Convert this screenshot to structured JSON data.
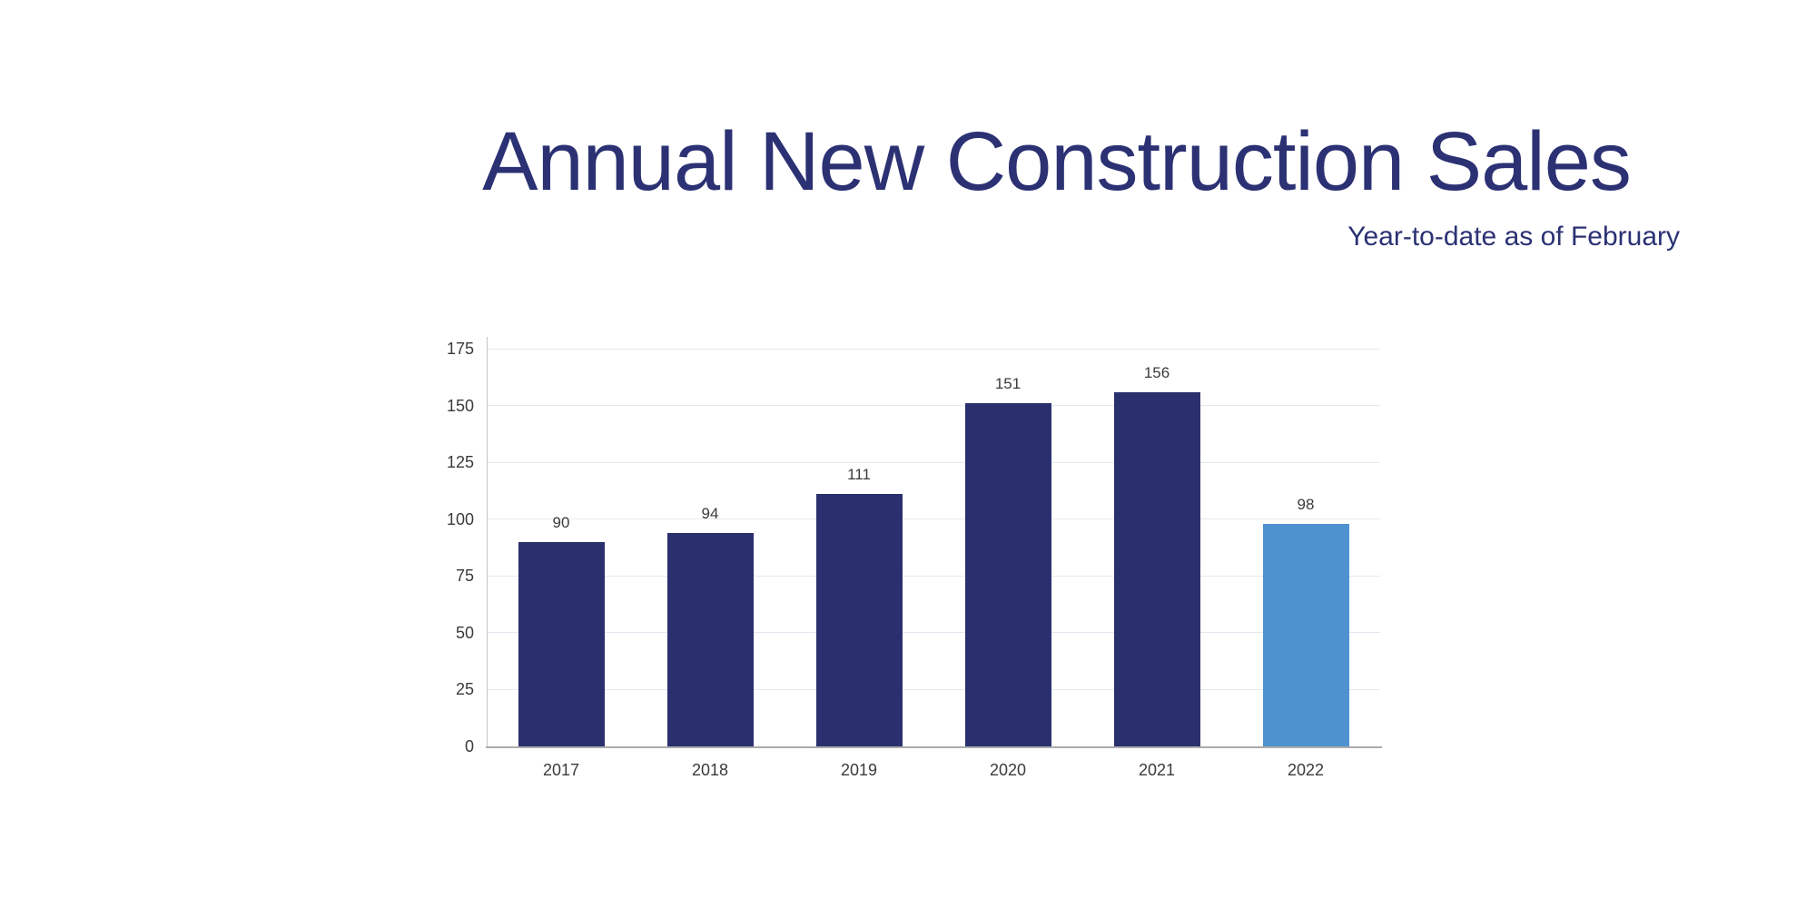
{
  "header": {
    "title": "Annual New Construction Sales",
    "subtitle": "Year-to-date as of February"
  },
  "colors": {
    "title_navy": "#2B3173",
    "bar_navy": "#2A306E",
    "bar_highlight_blue": "#4E92D0",
    "gridline": "#E4E9F1",
    "axis_line": "#ABABAB",
    "label_gray": "#3B3B3B"
  },
  "chart_data": {
    "type": "bar",
    "title": "Annual New Construction Sales",
    "subtitle": "Year-to-date as of February",
    "categories": [
      "2017",
      "2018",
      "2019",
      "2020",
      "2021",
      "2022"
    ],
    "values": [
      90,
      94,
      111,
      151,
      156,
      98
    ],
    "data_labels": [
      "90",
      "94",
      "111",
      "151",
      "156",
      "98"
    ],
    "highlighted_category": "2022",
    "y_ticks": [
      0,
      25,
      50,
      75,
      100,
      125,
      150,
      175
    ],
    "ylim": [
      0,
      175
    ],
    "xlabel": "",
    "ylabel": "",
    "grid": true,
    "legend_position": "none"
  }
}
